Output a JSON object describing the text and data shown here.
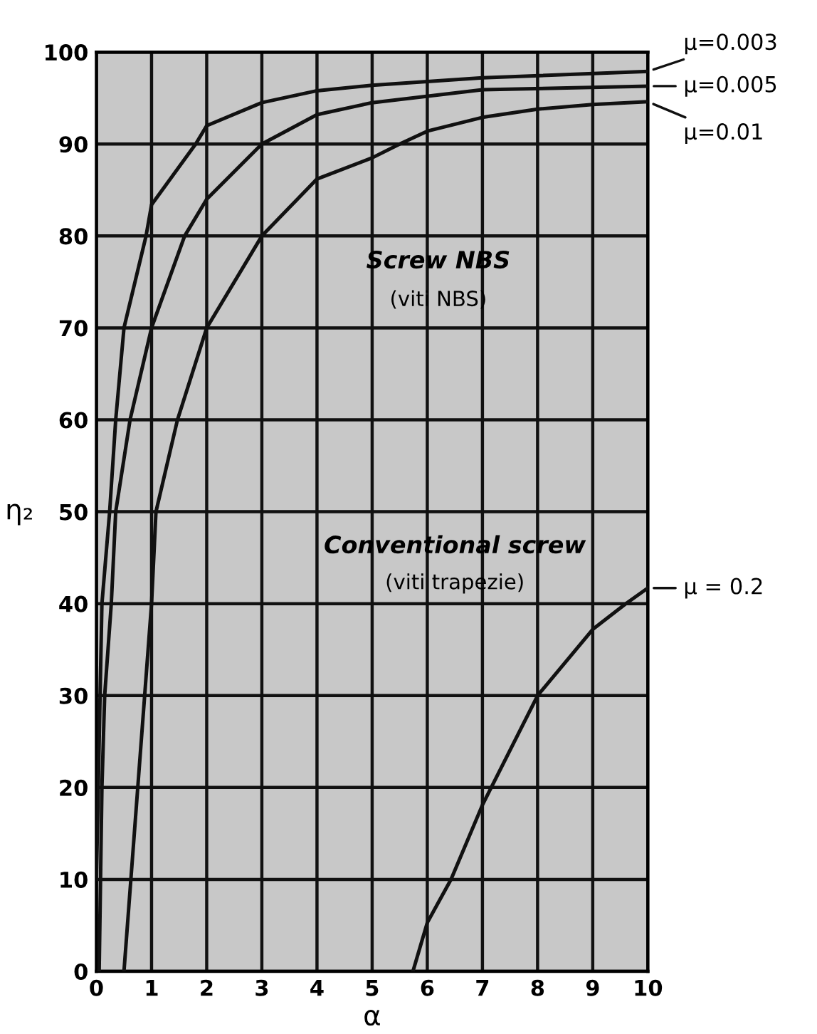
{
  "chart_data": {
    "type": "line",
    "xlabel": "α",
    "ylabel": "η₂",
    "xlim": [
      0,
      10
    ],
    "xticks": [
      0,
      1,
      2,
      3,
      4,
      5,
      6,
      7,
      8,
      9,
      10
    ],
    "ylim": [
      0,
      100
    ],
    "yticks": [
      0,
      10,
      20,
      30,
      40,
      50,
      60,
      70,
      80,
      90,
      100
    ],
    "grid": true,
    "legend": "right",
    "marker": "none",
    "line_style": "solid",
    "annotations": [
      "Screw NBS",
      "(viti NBS)",
      "Conventional screw",
      "(viti trapezie)"
    ],
    "series": [
      {
        "name": "μ=0.003",
        "color": "#111111",
        "x": [
          0,
          0.1,
          0.24,
          0.35,
          0.5,
          0.9,
          1,
          1.8,
          2,
          3,
          4,
          5,
          7,
          10
        ],
        "values": [
          10,
          40,
          50,
          60,
          70,
          80,
          83.4,
          90,
          92,
          94.5,
          95.8,
          96.4,
          97.2,
          97.9
        ]
      },
      {
        "name": "μ=0.005",
        "color": "#111111",
        "x": [
          0.05,
          0.1,
          0.15,
          0.27,
          0.35,
          0.61,
          1,
          1.6,
          2,
          3,
          4,
          5,
          7,
          10
        ],
        "values": [
          0,
          20,
          30,
          40,
          50,
          60,
          70,
          80,
          84,
          90,
          93.2,
          94.5,
          95.9,
          96.3
        ]
      },
      {
        "name": "μ=0.01",
        "color": "#111111",
        "x": [
          0.5,
          0.75,
          1,
          1.08,
          1.47,
          2,
          3,
          4,
          5,
          5.5,
          6,
          7,
          8,
          9,
          10
        ],
        "values": [
          0,
          20,
          40,
          50,
          60,
          70,
          80,
          86.2,
          88.5,
          90,
          91.4,
          92.9,
          93.8,
          94.3,
          94.6
        ]
      },
      {
        "name": "μ = 0.2",
        "color": "#111111",
        "x": [
          5.74,
          6,
          6.43,
          7,
          8,
          9,
          9.6,
          10
        ],
        "values": [
          0,
          5.3,
          10,
          18.1,
          30,
          37.2,
          40,
          41.7
        ]
      }
    ]
  }
}
